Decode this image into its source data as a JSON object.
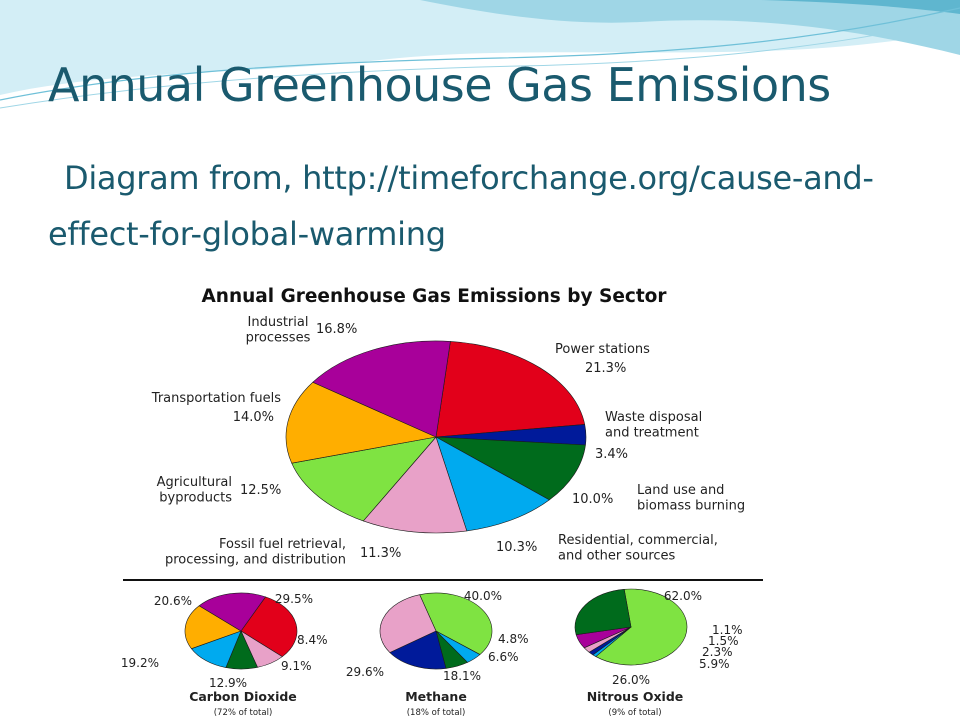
{
  "slide": {
    "title": "Annual Greenhouse Gas Emissions",
    "subtitle": "Diagram from, http://timeforchange.org/cause-and-effect-for-global-warming"
  },
  "colors": {
    "title_text": "#1a5a6e",
    "wave_light": "#d3eef6",
    "wave_mid": "#9fd6e6",
    "wave_dark": "#5fb6cf"
  },
  "chart_data": [
    {
      "type": "pie",
      "title": "Annual Greenhouse Gas Emissions by Sector",
      "slices": [
        {
          "label": "Power stations",
          "value": 21.3,
          "value_label": "21.3%",
          "color": "#e2001a"
        },
        {
          "label": "Waste disposal and treatment",
          "value": 3.4,
          "value_label": "3.4%",
          "color": "#001a9a"
        },
        {
          "label": "Land use and biomass burning",
          "value": 10.0,
          "value_label": "10.0%",
          "color": "#006b1c"
        },
        {
          "label": "Residential, commercial, and other sources",
          "value": 10.3,
          "value_label": "10.3%",
          "color": "#00aaef"
        },
        {
          "label": "Fossil fuel retrieval, processing, and distribution",
          "value": 11.3,
          "value_label": "11.3%",
          "color": "#e8a1c8"
        },
        {
          "label": "Agricultural byproducts",
          "value": 12.5,
          "value_label": "12.5%",
          "color": "#7fe342"
        },
        {
          "label": "Transportation fuels",
          "value": 14.0,
          "value_label": "14.0%",
          "color": "#ffae00"
        },
        {
          "label": "Industrial processes",
          "value": 16.8,
          "value_label": "16.8%",
          "color": "#a8009a"
        }
      ],
      "legend": "none"
    },
    {
      "type": "pie",
      "title": "Carbon Dioxide",
      "note": "(72% of total)",
      "slices": [
        {
          "value": 29.5,
          "value_label": "29.5%",
          "color": "#e2001a"
        },
        {
          "value": 8.4,
          "value_label": "8.4%",
          "color": "#e8a1c8"
        },
        {
          "value": 9.1,
          "value_label": "9.1%",
          "color": "#006b1c"
        },
        {
          "value": 12.9,
          "value_label": "12.9%",
          "color": "#00aaef"
        },
        {
          "value": 19.2,
          "value_label": "19.2%",
          "color": "#ffae00"
        },
        {
          "value": 20.6,
          "value_label": "20.6%",
          "color": "#a8009a"
        }
      ]
    },
    {
      "type": "pie",
      "title": "Methane",
      "note": "(18% of total)",
      "slices": [
        {
          "value": 40.0,
          "value_label": "40.0%",
          "color": "#7fe342"
        },
        {
          "value": 4.8,
          "value_label": "4.8%",
          "color": "#00aaef"
        },
        {
          "value": 6.6,
          "value_label": "6.6%",
          "color": "#006b1c"
        },
        {
          "value": 18.1,
          "value_label": "18.1%",
          "color": "#001a9a"
        },
        {
          "value": 29.6,
          "value_label": "29.6%",
          "color": "#e8a1c8"
        }
      ]
    },
    {
      "type": "pie",
      "title": "Nitrous Oxide",
      "note": "(9% of total)",
      "slices": [
        {
          "value": 62.0,
          "value_label": "62.0%",
          "color": "#7fe342"
        },
        {
          "value": 1.1,
          "value_label": "1.1%",
          "color": "#00aaef"
        },
        {
          "value": 1.5,
          "value_label": "1.5%",
          "color": "#001a9a"
        },
        {
          "value": 2.3,
          "value_label": "2.3%",
          "color": "#e8a1c8"
        },
        {
          "value": 5.9,
          "value_label": "5.9%",
          "color": "#a8009a"
        },
        {
          "value": 26.0,
          "value_label": "26.0%",
          "color": "#006b1c"
        }
      ]
    }
  ]
}
